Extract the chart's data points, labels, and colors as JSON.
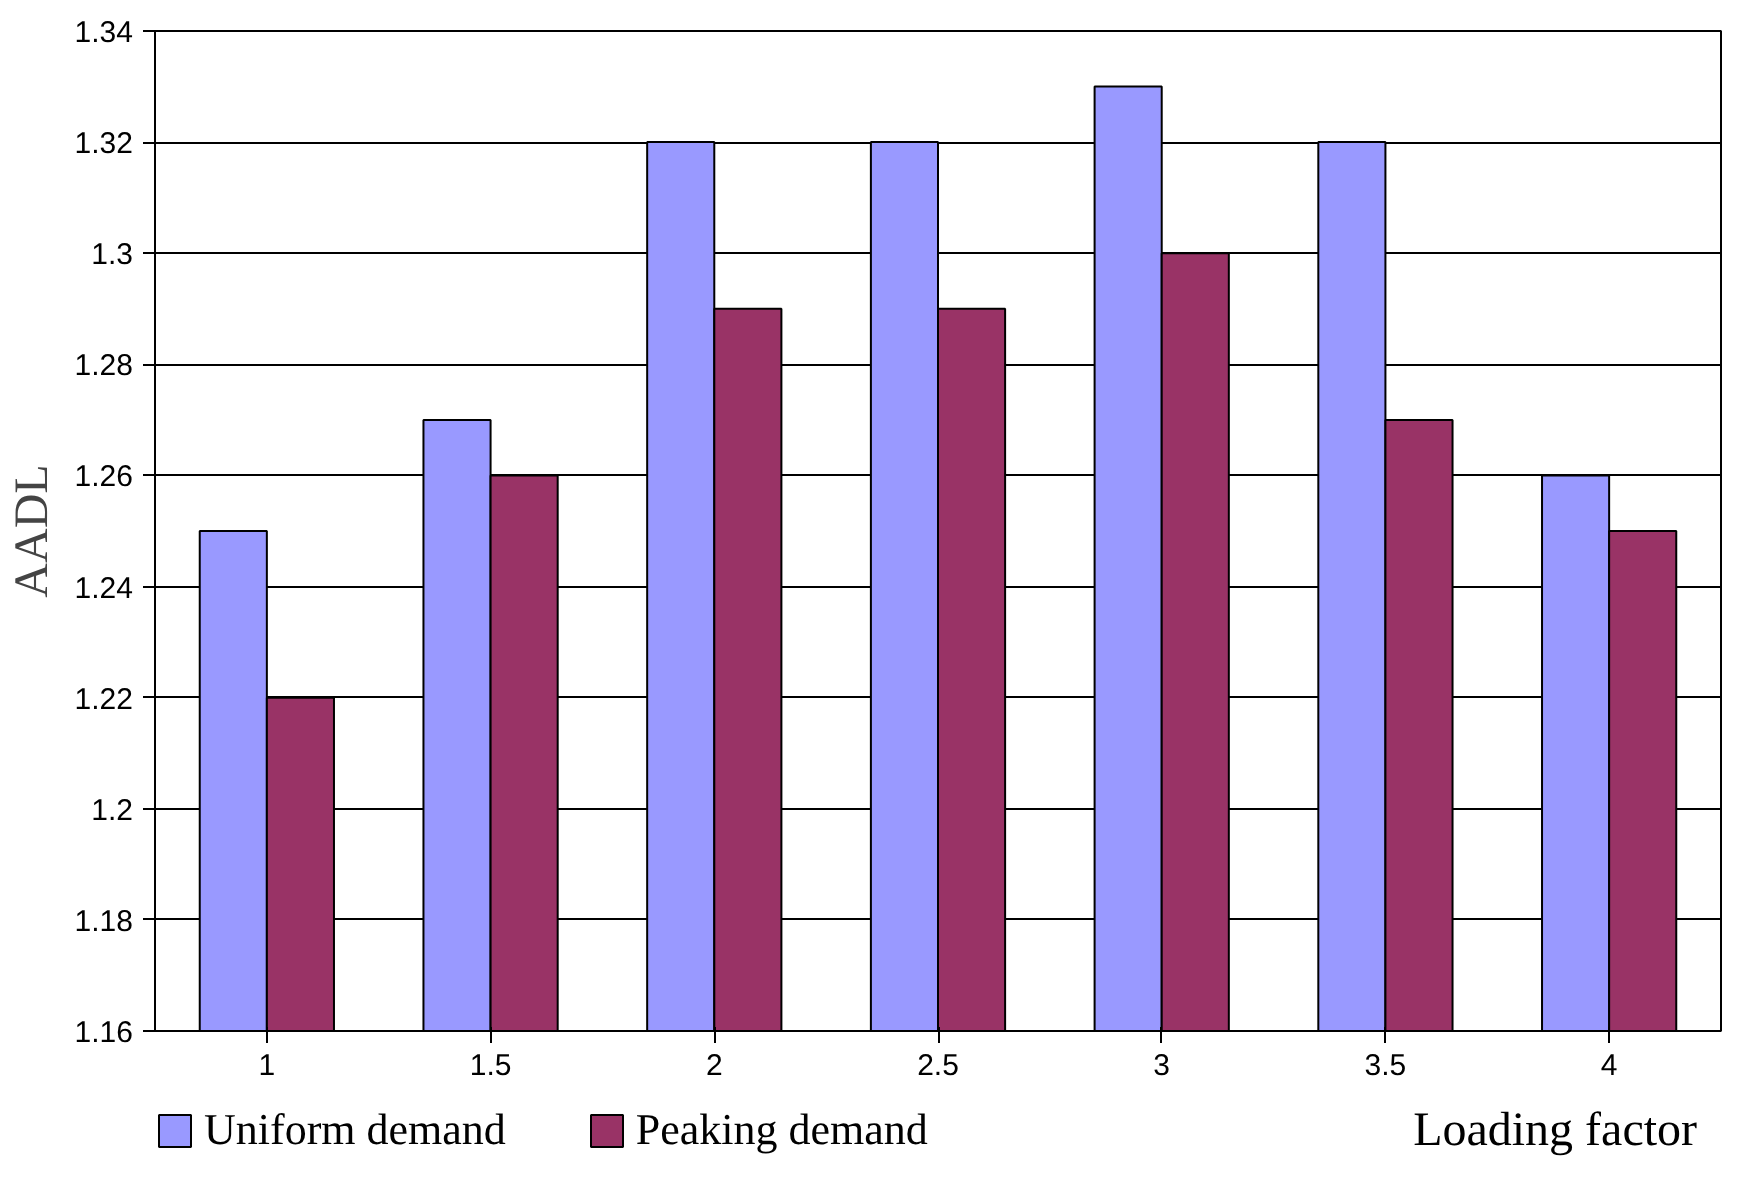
{
  "chart_data": {
    "type": "bar",
    "ylabel": "AADL",
    "xlabel": "Loading factor",
    "categories": [
      "1",
      "1.5",
      "2",
      "2.5",
      "3",
      "3.5",
      "4"
    ],
    "series": [
      {
        "name": "Uniform demand",
        "color": "#9999ff",
        "values": [
          1.25,
          1.27,
          1.32,
          1.32,
          1.33,
          1.32,
          1.26
        ]
      },
      {
        "name": "Peaking demand",
        "color": "#993366",
        "values": [
          1.22,
          1.26,
          1.29,
          1.29,
          1.3,
          1.27,
          1.25
        ]
      }
    ],
    "ylim": [
      1.16,
      1.34
    ],
    "yticks": [
      1.16,
      1.18,
      1.2,
      1.22,
      1.24,
      1.26,
      1.28,
      1.3,
      1.32,
      1.34
    ],
    "grid": "y",
    "legend": "bottom"
  }
}
